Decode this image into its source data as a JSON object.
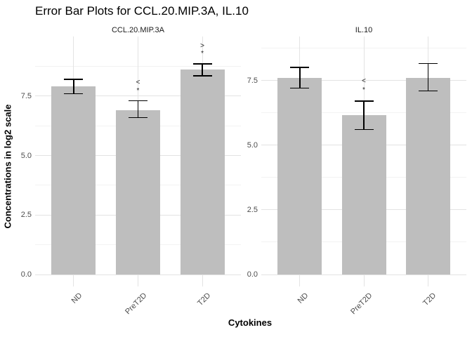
{
  "page": {
    "background": "#ffffff"
  },
  "chart_data": {
    "type": "bar",
    "title": "Error Bar Plots for CCL.20.MIP.3A, IL.10",
    "xlabel": "Cytokines",
    "ylabel": "Concentrations in log2 scale",
    "categories": [
      "ND",
      "PreT2D",
      "T2D"
    ],
    "grid": true,
    "legend": false,
    "error_bars": true,
    "facets": [
      {
        "label": "CCL.20.MIP.3A",
        "ylim": [
          -0.5,
          10.0
        ],
        "yticks": [
          0.0,
          2.5,
          5.0,
          7.5
        ],
        "ytick_labels": [
          "0.0",
          "2.5",
          "5.0",
          "7.5"
        ],
        "bars": [
          {
            "category": "ND",
            "value": 7.9,
            "err_low": 7.6,
            "err_high": 8.2,
            "annotation": ""
          },
          {
            "category": "PreT2D",
            "value": 6.9,
            "err_low": 6.6,
            "err_high": 7.3,
            "annotation": "< *"
          },
          {
            "category": "T2D",
            "value": 8.6,
            "err_low": 8.35,
            "err_high": 8.85,
            "annotation": "> *"
          }
        ]
      },
      {
        "label": "IL.10",
        "ylim": [
          -0.46,
          9.2
        ],
        "yticks": [
          0.0,
          2.5,
          5.0,
          7.5
        ],
        "ytick_labels": [
          "0.0",
          "2.5",
          "5.0",
          "7.5"
        ],
        "bars": [
          {
            "category": "ND",
            "value": 7.6,
            "err_low": 7.2,
            "err_high": 8.0,
            "annotation": ""
          },
          {
            "category": "PreT2D",
            "value": 6.15,
            "err_low": 5.6,
            "err_high": 6.7,
            "annotation": "< *"
          },
          {
            "category": "T2D",
            "value": 7.6,
            "err_low": 7.1,
            "err_high": 8.15,
            "annotation": ""
          }
        ]
      }
    ],
    "colors": {
      "bar_fill": "#bebebe",
      "error_bar": "#000000",
      "grid_major": "#e3e3e3",
      "grid_minor": "#f2f2f2",
      "tick_label": "#4d4d4d",
      "annotation": "#1f1f1f",
      "title": "#000000"
    }
  }
}
